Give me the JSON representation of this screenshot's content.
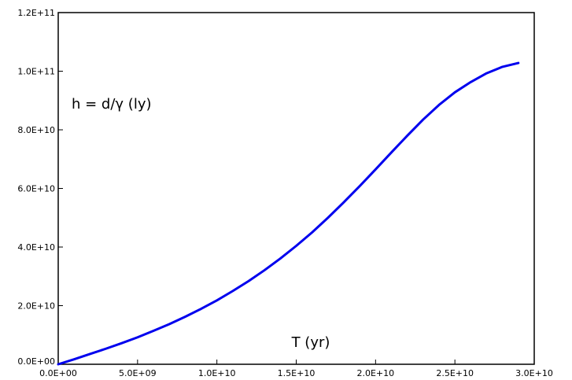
{
  "chart_data": {
    "type": "line",
    "title": "",
    "xlabel": "T (yr)",
    "ylabel": "h = d/γ (ly)",
    "xlim": [
      0,
      30000000000
    ],
    "ylim": [
      0,
      120000000000
    ],
    "grid": false,
    "x_ticks": [
      {
        "value": 0,
        "label": "0.0E+00"
      },
      {
        "value": 5000000000,
        "label": "5.0E+09"
      },
      {
        "value": 10000000000,
        "label": "1.0E+10"
      },
      {
        "value": 15000000000,
        "label": "1.5E+10"
      },
      {
        "value": 20000000000,
        "label": "2.0E+10"
      },
      {
        "value": 25000000000,
        "label": "2.5E+10"
      },
      {
        "value": 30000000000,
        "label": "3.0E+10"
      }
    ],
    "y_ticks": [
      {
        "value": 0,
        "label": "0.0E+00"
      },
      {
        "value": 20000000000,
        "label": "2.0E+10"
      },
      {
        "value": 40000000000,
        "label": "4.0E+10"
      },
      {
        "value": 60000000000,
        "label": "6.0E+10"
      },
      {
        "value": 80000000000,
        "label": "8.0E+10"
      },
      {
        "value": 100000000000,
        "label": "1.0E+11"
      },
      {
        "value": 120000000000,
        "label": "1.2E+11"
      }
    ],
    "series": [
      {
        "color": "#0000ee",
        "x": [
          0,
          1000000000,
          2000000000,
          3000000000,
          4000000000,
          5000000000,
          6000000000,
          7000000000,
          8000000000,
          9000000000,
          10000000000,
          11000000000,
          12000000000,
          13000000000,
          14000000000,
          15000000000,
          16000000000,
          17000000000,
          18000000000,
          19000000000,
          20000000000,
          21000000000,
          22000000000,
          23000000000,
          24000000000,
          25000000000,
          26000000000,
          27000000000,
          28000000000,
          29000000000
        ],
        "y": [
          0,
          1700000000,
          3500000000,
          5300000000,
          7200000000,
          9200000000,
          11400000000,
          13700000000,
          16200000000,
          18900000000,
          21800000000,
          25000000000,
          28400000000,
          32100000000,
          36100000000,
          40400000000,
          45000000000,
          50000000000,
          55300000000,
          60800000000,
          66500000000,
          72300000000,
          78000000000,
          83500000000,
          88500000000,
          92800000000,
          96300000000,
          99300000000,
          101500000000,
          102800000000
        ]
      }
    ]
  }
}
